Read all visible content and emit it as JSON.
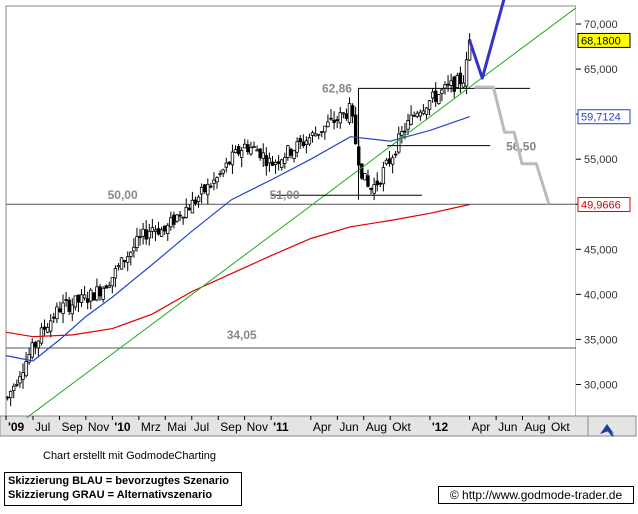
{
  "chart_data": {
    "type": "candlestick",
    "y_axis": {
      "ticks": [
        "30,000",
        "35,000",
        "40,000",
        "45,000",
        "50,000",
        "55,000",
        "60,000",
        "65,000",
        "70,000"
      ],
      "tick_values": [
        30000,
        35000,
        40000,
        45000,
        50000,
        55000,
        60000,
        65000,
        70000
      ],
      "range": [
        26500,
        72000
      ],
      "position": "right"
    },
    "x_axis": {
      "ticks": [
        "'09",
        "Jul",
        "Sep",
        "Nov",
        "'10",
        "Mrz",
        "Mai",
        "Jul",
        "Sep",
        "Nov",
        "'11",
        "Apr",
        "Jun",
        "Aug",
        "Okt",
        "'12",
        "Apr",
        "Jun",
        "Aug",
        "Okt"
      ],
      "tick_values": [
        2009.33,
        2009.5,
        2009.667,
        2009.833,
        2010.0,
        2010.167,
        2010.333,
        2010.5,
        2010.667,
        2010.833,
        2011.0,
        2011.25,
        2011.417,
        2011.583,
        2011.75,
        2012.0,
        2012.25,
        2012.417,
        2012.583,
        2012.75
      ],
      "range": [
        2009.33,
        2012.92
      ],
      "bold_ticks": [
        "'09",
        "'10",
        "'11",
        "'12"
      ]
    },
    "price_anchors": [
      [
        2009.34,
        28500
      ],
      [
        2009.42,
        31500
      ],
      [
        2009.5,
        34000
      ],
      [
        2009.58,
        36500
      ],
      [
        2009.67,
        38500
      ],
      [
        2009.75,
        39000
      ],
      [
        2009.83,
        39500
      ],
      [
        2009.92,
        40500
      ],
      [
        2010.0,
        42000
      ],
      [
        2010.08,
        44000
      ],
      [
        2010.17,
        46000
      ],
      [
        2010.25,
        47500
      ],
      [
        2010.33,
        47000
      ],
      [
        2010.42,
        49000
      ],
      [
        2010.5,
        50000
      ],
      [
        2010.58,
        51500
      ],
      [
        2010.67,
        53000
      ],
      [
        2010.75,
        55000
      ],
      [
        2010.83,
        56500
      ],
      [
        2010.92,
        56000
      ],
      [
        2011.0,
        54500
      ],
      [
        2011.08,
        55500
      ],
      [
        2011.17,
        56500
      ],
      [
        2011.25,
        57500
      ],
      [
        2011.33,
        58500
      ],
      [
        2011.42,
        59500
      ],
      [
        2011.5,
        60500
      ],
      [
        2011.54,
        56000
      ],
      [
        2011.58,
        53000
      ],
      [
        2011.62,
        51500
      ],
      [
        2011.67,
        52500
      ],
      [
        2011.75,
        55000
      ],
      [
        2011.83,
        58000
      ],
      [
        2011.92,
        60500
      ],
      [
        2012.0,
        61500
      ],
      [
        2012.08,
        62500
      ],
      [
        2012.17,
        63500
      ],
      [
        2012.22,
        64000
      ],
      [
        2012.25,
        68180
      ]
    ],
    "series": [
      {
        "name": "",
        "type": "line",
        "color": "#dd0000",
        "points": [
          [
            2009.33,
            35800
          ],
          [
            2009.5,
            35300
          ],
          [
            2009.75,
            35500
          ],
          [
            2010.0,
            36200
          ],
          [
            2010.25,
            37800
          ],
          [
            2010.5,
            40300
          ],
          [
            2010.75,
            42300
          ],
          [
            2011.0,
            44300
          ],
          [
            2011.25,
            46200
          ],
          [
            2011.5,
            47500
          ],
          [
            2011.75,
            48200
          ],
          [
            2012.0,
            49000
          ],
          [
            2012.25,
            49967
          ]
        ]
      },
      {
        "name": "",
        "type": "line",
        "color": "#2244cc",
        "points": [
          [
            2009.33,
            33200
          ],
          [
            2009.5,
            32600
          ],
          [
            2009.67,
            35000
          ],
          [
            2009.83,
            37500
          ],
          [
            2010.0,
            39700
          ],
          [
            2010.25,
            43300
          ],
          [
            2010.5,
            47000
          ],
          [
            2010.75,
            50500
          ],
          [
            2011.0,
            52700
          ],
          [
            2011.25,
            55000
          ],
          [
            2011.5,
            57500
          ],
          [
            2011.75,
            57000
          ],
          [
            2012.0,
            58200
          ],
          [
            2012.25,
            59712
          ]
        ]
      },
      {
        "name": "",
        "type": "line",
        "color": "#22aa22",
        "points": [
          [
            2009.46,
            26300
          ],
          [
            2012.92,
            71800
          ]
        ]
      }
    ],
    "horizontal_lines": [
      {
        "value": 50000,
        "label": "50,00"
      },
      {
        "value": 34050,
        "label": "34,05"
      }
    ],
    "level_annotations": [
      {
        "label": "62,86",
        "value": 62860
      },
      {
        "label": "51,00",
        "value": 51000
      },
      {
        "label": "56,50",
        "value": 56500
      }
    ],
    "price_labels": [
      {
        "text": "68,1800",
        "value": 68180,
        "bg": "#ffff00",
        "fg": "#000000"
      },
      {
        "text": "59,7124",
        "value": 59712,
        "bg": "#ffffff",
        "fg": "#2244cc"
      },
      {
        "text": "49,9666",
        "value": 49967,
        "bg": "#ffffff",
        "fg": "#dd0000"
      }
    ],
    "scenario_blue": {
      "color": "#3333cc",
      "points": [
        [
          2012.25,
          68180
        ],
        [
          2012.33,
          64000
        ],
        [
          2012.47,
          73000
        ]
      ]
    },
    "scenario_grey": {
      "color": "#bbbbbb",
      "points": [
        [
          2012.28,
          63000
        ],
        [
          2012.4,
          63000
        ],
        [
          2012.47,
          58000
        ],
        [
          2012.53,
          58000
        ],
        [
          2012.58,
          54500
        ],
        [
          2012.67,
          54500
        ],
        [
          2012.75,
          50000
        ]
      ]
    }
  },
  "footer": {
    "credit": "Chart erstellt mit GodmodeCharting",
    "legend_blue": "Skizzierung BLAU = bevorzugtes Szenario",
    "legend_grey": "Skizzierung GRAU = Alternativszenario",
    "url": "© http://www.godmode-trader.de"
  }
}
